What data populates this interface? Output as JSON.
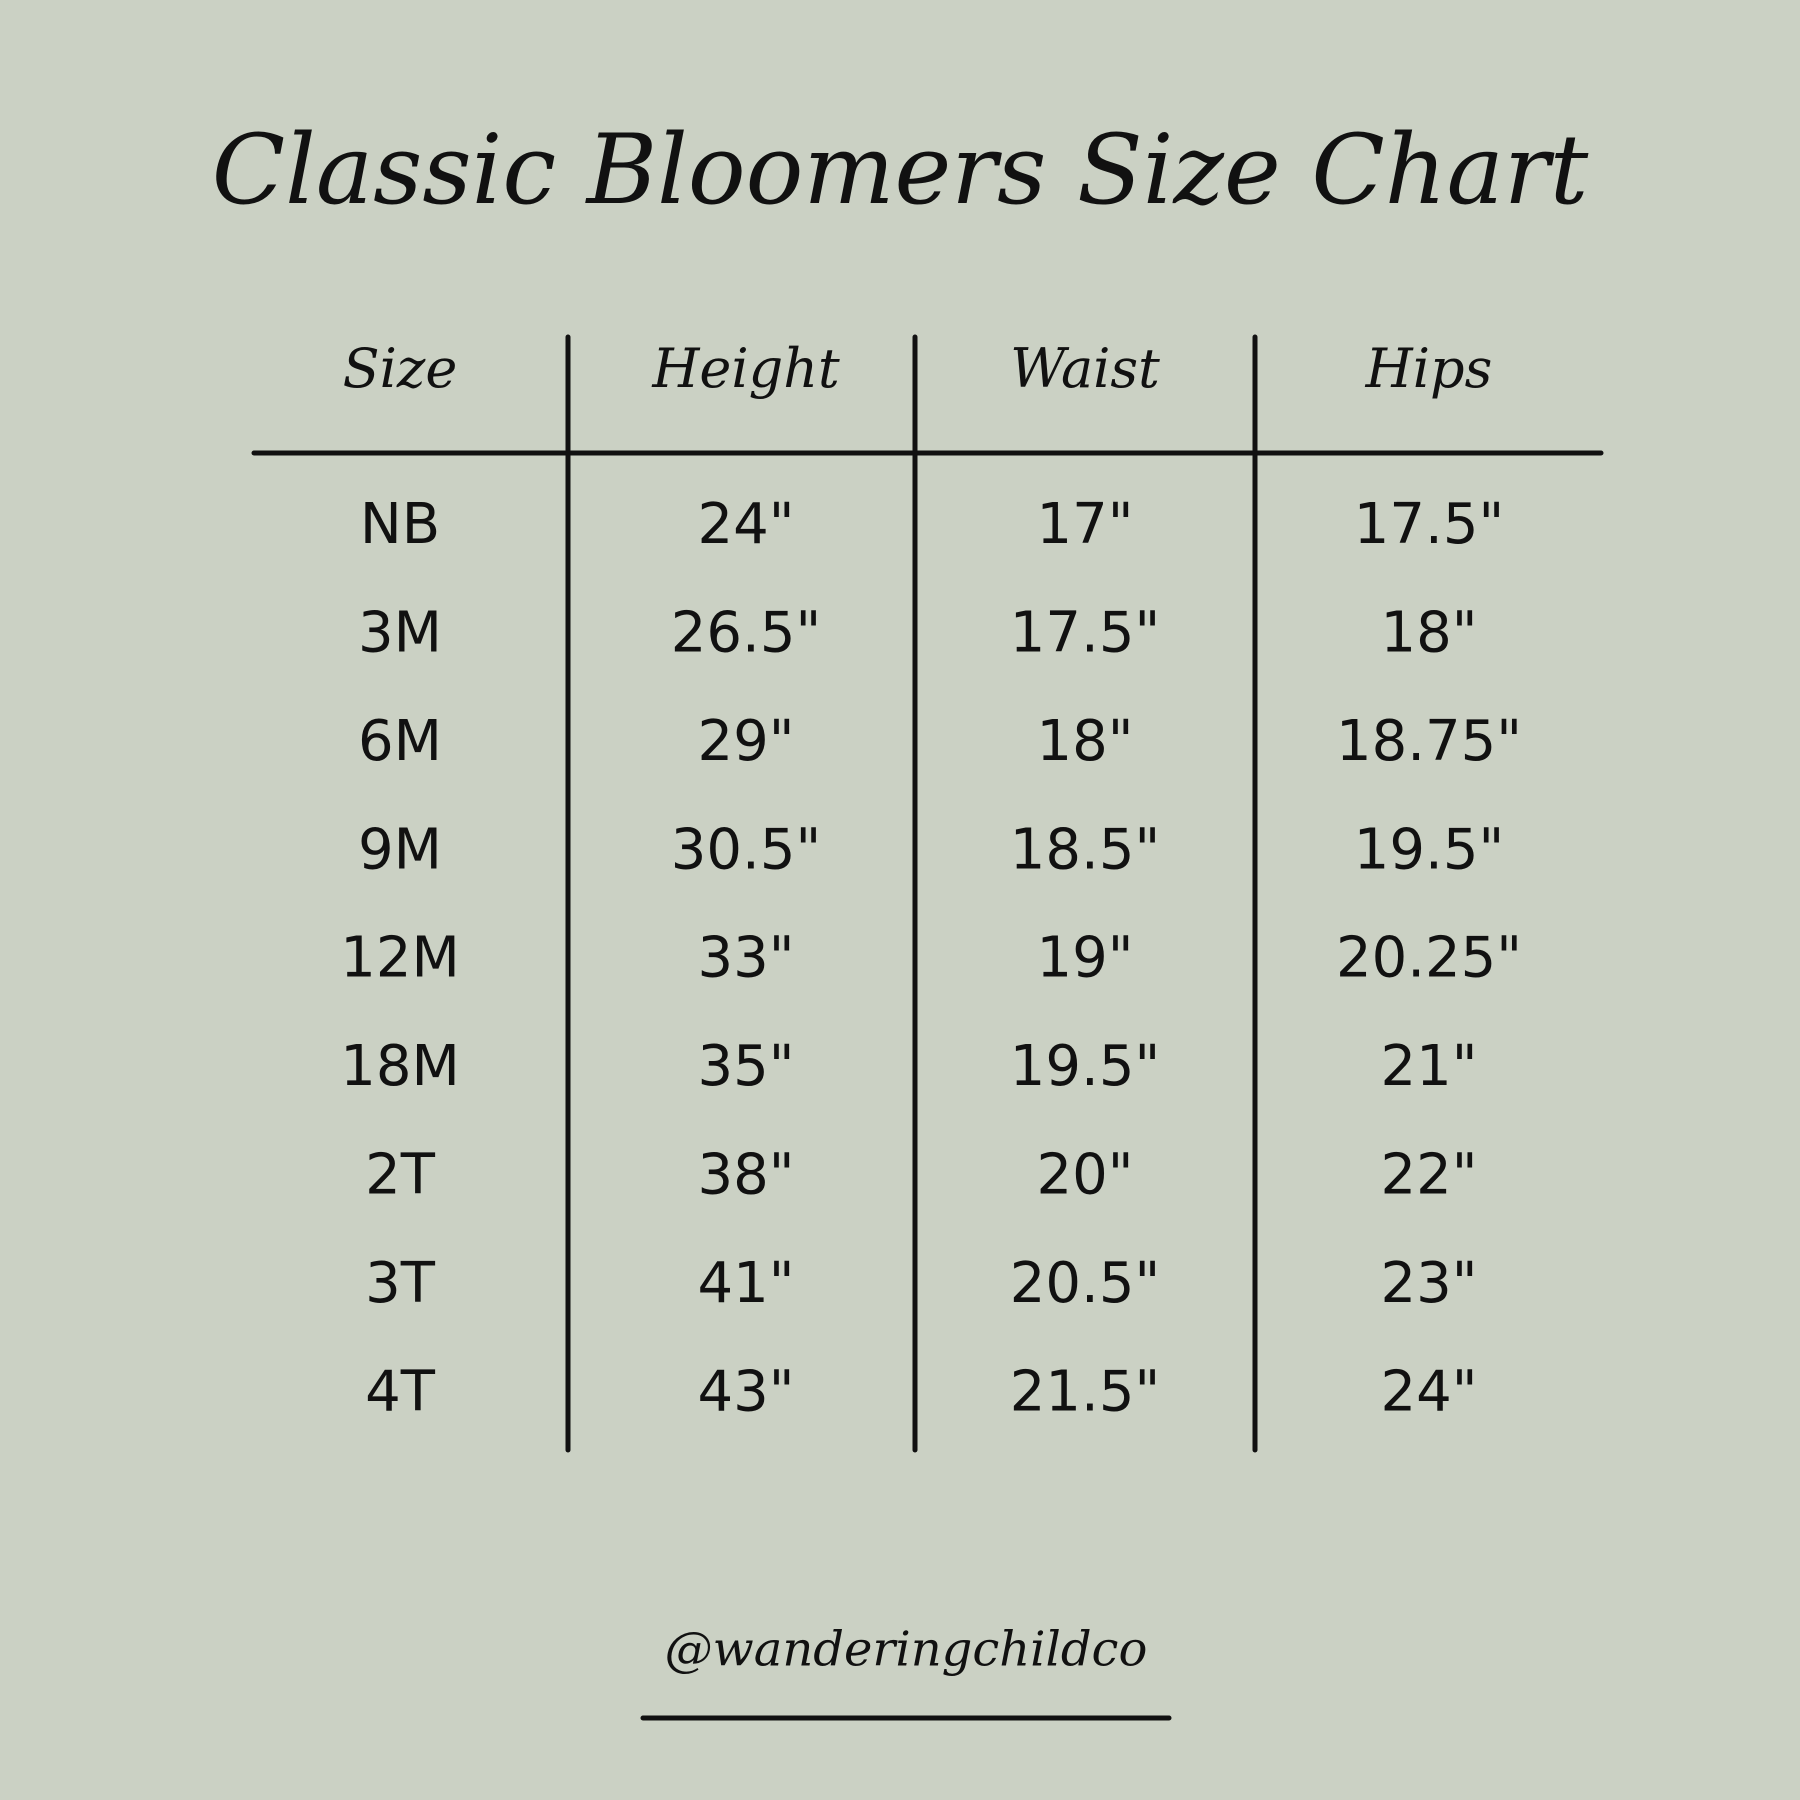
{
  "header": {
    "title": "Classic Bloomers Size Chart"
  },
  "table": {
    "columns": [
      "Size",
      "Height",
      "Waist",
      "Hips"
    ],
    "rows": [
      [
        "NB",
        "24\"",
        "17\"",
        "17.5\""
      ],
      [
        "3M",
        "26.5\"",
        "17.5\"",
        "18\""
      ],
      [
        "6M",
        "29\"",
        "18\"",
        "18.75\""
      ],
      [
        "9M",
        "30.5\"",
        "18.5\"",
        "19.5\""
      ],
      [
        "12M",
        "33\"",
        "19\"",
        "20.25\""
      ],
      [
        "18M",
        "35\"",
        "19.5\"",
        "21\""
      ],
      [
        "2T",
        "38\"",
        "20\"",
        "22\""
      ],
      [
        "3T",
        "41\"",
        "20.5\"",
        "23\""
      ],
      [
        "4T",
        "43\"",
        "21.5\"",
        "24\""
      ]
    ]
  },
  "footer": {
    "handle": "@wanderingchildco"
  }
}
